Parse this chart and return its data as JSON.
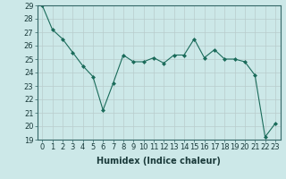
{
  "x": [
    0,
    1,
    2,
    3,
    4,
    5,
    6,
    7,
    8,
    9,
    10,
    11,
    12,
    13,
    14,
    15,
    16,
    17,
    18,
    19,
    20,
    21,
    22,
    23
  ],
  "y": [
    29.0,
    27.2,
    26.5,
    25.5,
    24.5,
    23.7,
    21.2,
    23.2,
    25.3,
    24.8,
    24.8,
    25.1,
    24.7,
    25.3,
    25.3,
    26.5,
    25.1,
    25.7,
    25.0,
    25.0,
    24.8,
    23.8,
    19.2,
    20.2
  ],
  "line_color": "#1a6b5a",
  "marker": "D",
  "marker_size": 2,
  "bg_color": "#cce8e8",
  "grid_color": "#b8cccc",
  "xlabel": "Humidex (Indice chaleur)",
  "xlim": [
    -0.5,
    23.5
  ],
  "ylim": [
    19,
    29
  ],
  "yticks": [
    19,
    20,
    21,
    22,
    23,
    24,
    25,
    26,
    27,
    28,
    29
  ],
  "xticks": [
    0,
    1,
    2,
    3,
    4,
    5,
    6,
    7,
    8,
    9,
    10,
    11,
    12,
    13,
    14,
    15,
    16,
    17,
    18,
    19,
    20,
    21,
    22,
    23
  ],
  "tick_fontsize": 6,
  "label_fontsize": 7
}
